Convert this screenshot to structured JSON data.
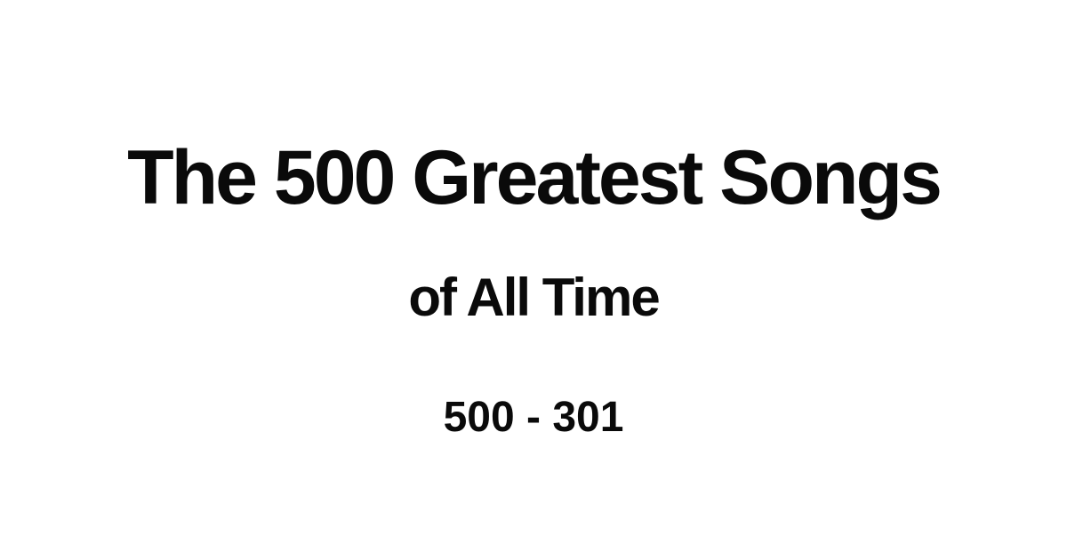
{
  "header": {
    "title": "The 500 Greatest Songs",
    "subtitle": "of All Time",
    "range": "500 - 301"
  },
  "colors": {
    "background": "#ffffff",
    "text": "#0a0a0a"
  }
}
